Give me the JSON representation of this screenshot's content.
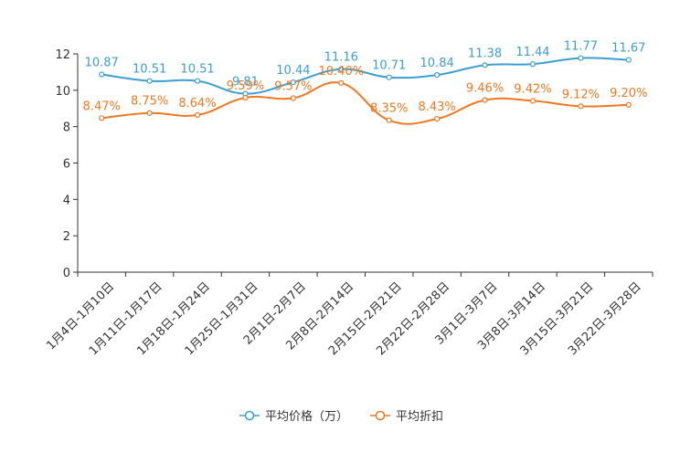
{
  "chart_data": {
    "type": "line",
    "title": "",
    "xlabel": "",
    "ylabel": "",
    "ylim": [
      0,
      12
    ],
    "yticks": [
      0,
      2,
      4,
      6,
      8,
      10,
      12
    ],
    "grid": false,
    "legend_position": "bottom-center",
    "categories": [
      "1月4日-1月10日",
      "1月11日-1月17日",
      "1月18日-1月24日",
      "1月25日-1月31日",
      "2月1日-2月7日",
      "2月8日-2月14日",
      "2月15日-2月21日",
      "2月22日-2月28日",
      "3月1日-3月7日",
      "3月8日-3月14日",
      "3月15日-3月21日",
      "3月22日-3月28日"
    ],
    "series": [
      {
        "name": "平均价格（万）",
        "color": "#3c9fd0",
        "values": [
          10.87,
          10.51,
          10.51,
          9.81,
          10.44,
          11.16,
          10.71,
          10.84,
          11.38,
          11.44,
          11.77,
          11.67
        ],
        "labels": [
          "10.87",
          "10.51",
          "10.51",
          "9.81",
          "10.44",
          "11.16",
          "10.71",
          "10.84",
          "11.38",
          "11.44",
          "11.77",
          "11.67"
        ]
      },
      {
        "name": "平均折扣",
        "color": "#f07820",
        "values": [
          8.47,
          8.75,
          8.64,
          9.59,
          9.57,
          10.4,
          8.35,
          8.43,
          9.46,
          9.42,
          9.12,
          9.2
        ],
        "labels": [
          "8.47%",
          "8.75%",
          "8.64%",
          "9.59%",
          "9.57%",
          "10.40%",
          "8.35%",
          "8.43%",
          "9.46%",
          "9.42%",
          "9.12%",
          "9.20%"
        ]
      }
    ]
  }
}
